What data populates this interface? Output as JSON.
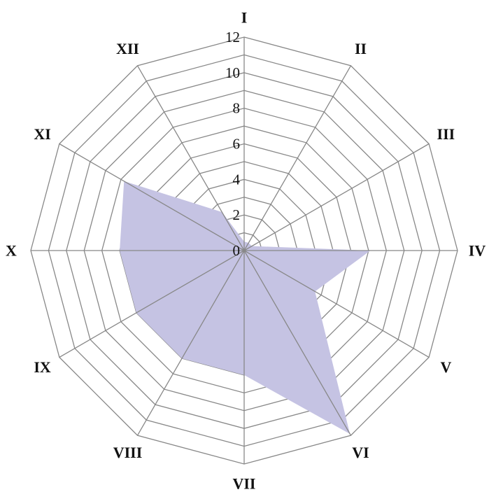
{
  "chart_data": {
    "type": "radar",
    "categories": [
      "I",
      "II",
      "III",
      "IV",
      "V",
      "VI",
      "VII",
      "VIII",
      "IX",
      "X",
      "XI",
      "XII"
    ],
    "series": [
      {
        "values": [
          0.5,
          0.5,
          0.5,
          7.1,
          4.6,
          11.9,
          7.0,
          7.0,
          7.0,
          7.0,
          7.8,
          2.5
        ]
      }
    ],
    "rlim": [
      0,
      12
    ],
    "rticks": [
      0,
      2,
      4,
      6,
      8,
      10,
      12
    ],
    "rtick_labels": [
      "0",
      "2",
      "4",
      "6",
      "8",
      "10",
      "12"
    ],
    "fill_color": "#c5c3e3",
    "grid_color": "#888888",
    "grid": true,
    "legend": "none"
  }
}
